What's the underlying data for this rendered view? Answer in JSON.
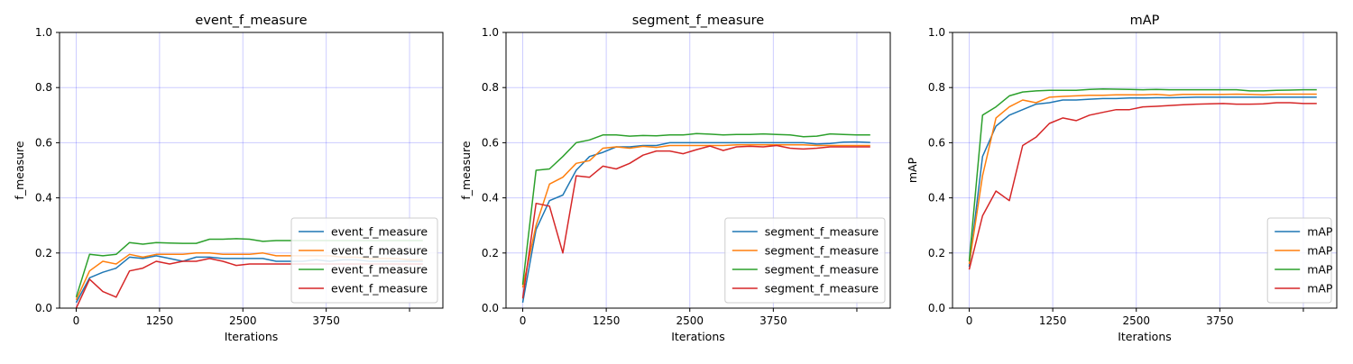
{
  "chart_data": [
    {
      "type": "line",
      "title": "event_f_measure",
      "xlabel": "Iterations",
      "ylabel": "f_measure",
      "xlim": [
        -250,
        5500
      ],
      "ylim": [
        0.0,
        1.0
      ],
      "x_ticks": [
        "0",
        "1250",
        "2500",
        "3750",
        ""
      ],
      "y_ticks": [
        "0.0",
        "0.2",
        "0.4",
        "0.6",
        "0.8",
        "1.0"
      ],
      "grid": true,
      "legend_position": "lower-right",
      "x": [
        0,
        200,
        400,
        600,
        800,
        1000,
        1200,
        1400,
        1600,
        1800,
        2000,
        2200,
        2400,
        2600,
        2800,
        3000,
        3200,
        3400,
        3600,
        3800,
        4000,
        4200,
        4400,
        4600,
        4800,
        5000,
        5200
      ],
      "series": [
        {
          "name": "event_f_measure",
          "color": "#1f77b4",
          "values": [
            0.02,
            0.11,
            0.13,
            0.145,
            0.185,
            0.18,
            0.19,
            0.18,
            0.17,
            0.185,
            0.185,
            0.18,
            0.18,
            0.18,
            0.18,
            0.17,
            0.17,
            0.17,
            0.175,
            0.17,
            0.175,
            0.175,
            0.17,
            0.17,
            0.17,
            0.17,
            0.17
          ]
        },
        {
          "name": "event_f_measure",
          "color": "#ff7f0e",
          "values": [
            0.03,
            0.135,
            0.17,
            0.16,
            0.195,
            0.185,
            0.195,
            0.195,
            0.195,
            0.2,
            0.2,
            0.195,
            0.195,
            0.195,
            0.2,
            0.19,
            0.19,
            0.19,
            0.19,
            0.19,
            0.185,
            0.185,
            0.18,
            0.18,
            0.18,
            0.175,
            0.175
          ]
        },
        {
          "name": "event_f_measure",
          "color": "#2ca02c",
          "values": [
            0.04,
            0.195,
            0.19,
            0.195,
            0.238,
            0.232,
            0.238,
            0.236,
            0.235,
            0.235,
            0.25,
            0.25,
            0.252,
            0.25,
            0.242,
            0.245,
            0.245,
            0.245,
            0.245,
            0.245,
            0.245,
            0.245,
            0.245,
            0.245,
            0.245,
            0.245,
            0.245
          ]
        },
        {
          "name": "event_f_measure",
          "color": "#d62728",
          "values": [
            0.0,
            0.105,
            0.06,
            0.04,
            0.135,
            0.145,
            0.17,
            0.16,
            0.17,
            0.17,
            0.18,
            0.17,
            0.155,
            0.16,
            0.16,
            0.16,
            0.16,
            0.16,
            0.16,
            0.16,
            0.16,
            0.16,
            0.16,
            0.16,
            0.16,
            0.16,
            0.16
          ]
        }
      ]
    },
    {
      "type": "line",
      "title": "segment_f_measure",
      "xlabel": "Iterations",
      "ylabel": "f_measure",
      "xlim": [
        -250,
        5500
      ],
      "ylim": [
        0.0,
        1.0
      ],
      "x_ticks": [
        "0",
        "1250",
        "2500",
        "3750",
        ""
      ],
      "y_ticks": [
        "0.0",
        "0.2",
        "0.4",
        "0.6",
        "0.8",
        "1.0"
      ],
      "grid": true,
      "legend_position": "lower-right",
      "x": [
        0,
        200,
        400,
        600,
        800,
        1000,
        1200,
        1400,
        1600,
        1800,
        2000,
        2200,
        2400,
        2600,
        2800,
        3000,
        3200,
        3400,
        3600,
        3800,
        4000,
        4200,
        4400,
        4600,
        4800,
        5000,
        5200
      ],
      "series": [
        {
          "name": "segment_f_measure",
          "color": "#1f77b4",
          "values": [
            0.02,
            0.285,
            0.39,
            0.41,
            0.5,
            0.55,
            0.565,
            0.585,
            0.585,
            0.59,
            0.59,
            0.6,
            0.6,
            0.6,
            0.6,
            0.6,
            0.6,
            0.6,
            0.6,
            0.6,
            0.6,
            0.6,
            0.595,
            0.597,
            0.602,
            0.603,
            0.601
          ]
        },
        {
          "name": "segment_f_measure",
          "color": "#ff7f0e",
          "values": [
            0.075,
            0.3,
            0.45,
            0.475,
            0.525,
            0.535,
            0.58,
            0.585,
            0.58,
            0.587,
            0.583,
            0.59,
            0.59,
            0.59,
            0.59,
            0.59,
            0.592,
            0.592,
            0.592,
            0.592,
            0.592,
            0.592,
            0.59,
            0.59,
            0.59,
            0.59,
            0.59
          ]
        },
        {
          "name": "segment_f_measure",
          "color": "#2ca02c",
          "values": [
            0.085,
            0.5,
            0.505,
            0.55,
            0.6,
            0.61,
            0.628,
            0.628,
            0.624,
            0.626,
            0.625,
            0.628,
            0.628,
            0.633,
            0.631,
            0.628,
            0.63,
            0.63,
            0.632,
            0.63,
            0.628,
            0.622,
            0.624,
            0.632,
            0.63,
            0.628,
            0.628
          ]
        },
        {
          "name": "segment_f_measure",
          "color": "#d62728",
          "values": [
            0.035,
            0.38,
            0.37,
            0.2,
            0.48,
            0.475,
            0.515,
            0.505,
            0.525,
            0.555,
            0.57,
            0.57,
            0.56,
            0.575,
            0.588,
            0.572,
            0.585,
            0.587,
            0.585,
            0.59,
            0.58,
            0.577,
            0.58,
            0.585,
            0.585,
            0.585,
            0.585
          ]
        }
      ]
    },
    {
      "type": "line",
      "title": "mAP",
      "xlabel": "Iterations",
      "ylabel": "mAP",
      "xlim": [
        -250,
        5500
      ],
      "ylim": [
        0.0,
        1.0
      ],
      "x_ticks": [
        "0",
        "1250",
        "2500",
        "3750",
        ""
      ],
      "y_ticks": [
        "0.0",
        "0.2",
        "0.4",
        "0.6",
        "0.8",
        "1.0"
      ],
      "grid": true,
      "legend_position": "lower-right",
      "x": [
        0,
        200,
        400,
        600,
        800,
        1000,
        1200,
        1400,
        1600,
        1800,
        2000,
        2200,
        2400,
        2600,
        2800,
        3000,
        3200,
        3400,
        3600,
        3800,
        4000,
        4200,
        4400,
        4600,
        4800,
        5000,
        5200
      ],
      "series": [
        {
          "name": "mAP",
          "color": "#1f77b4",
          "values": [
            0.15,
            0.55,
            0.66,
            0.7,
            0.72,
            0.74,
            0.745,
            0.755,
            0.755,
            0.758,
            0.76,
            0.76,
            0.762,
            0.762,
            0.763,
            0.763,
            0.764,
            0.765,
            0.765,
            0.765,
            0.765,
            0.765,
            0.765,
            0.765,
            0.765,
            0.765,
            0.765
          ]
        },
        {
          "name": "mAP",
          "color": "#ff7f0e",
          "values": [
            0.16,
            0.48,
            0.69,
            0.73,
            0.755,
            0.745,
            0.765,
            0.768,
            0.77,
            0.772,
            0.772,
            0.774,
            0.774,
            0.774,
            0.775,
            0.772,
            0.775,
            0.775,
            0.775,
            0.775,
            0.776,
            0.775,
            0.774,
            0.776,
            0.776,
            0.776,
            0.776
          ]
        },
        {
          "name": "mAP",
          "color": "#2ca02c",
          "values": [
            0.17,
            0.7,
            0.73,
            0.77,
            0.784,
            0.788,
            0.79,
            0.79,
            0.79,
            0.793,
            0.795,
            0.794,
            0.793,
            0.792,
            0.793,
            0.792,
            0.792,
            0.792,
            0.792,
            0.792,
            0.792,
            0.788,
            0.788,
            0.79,
            0.791,
            0.792,
            0.792
          ]
        },
        {
          "name": "mAP",
          "color": "#d62728",
          "values": [
            0.14,
            0.335,
            0.425,
            0.39,
            0.59,
            0.62,
            0.67,
            0.69,
            0.68,
            0.7,
            0.71,
            0.72,
            0.72,
            0.73,
            0.732,
            0.735,
            0.738,
            0.74,
            0.741,
            0.742,
            0.74,
            0.74,
            0.741,
            0.745,
            0.745,
            0.742,
            0.742
          ]
        }
      ]
    }
  ]
}
